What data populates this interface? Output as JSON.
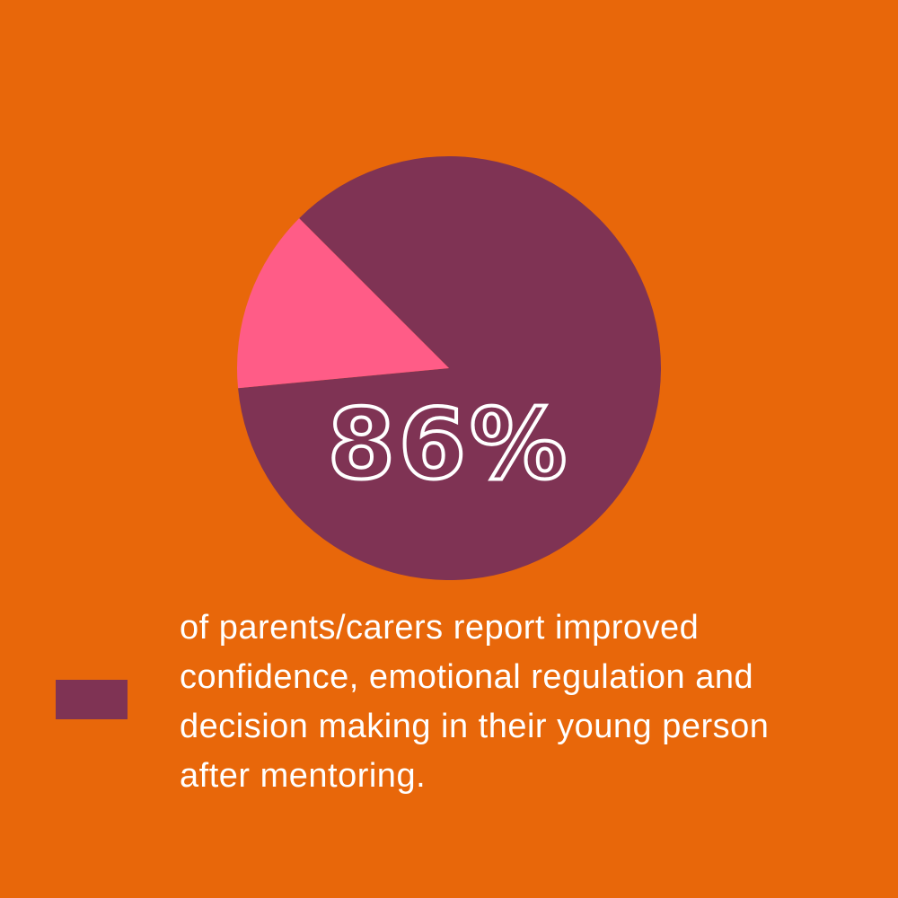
{
  "chart_data": {
    "type": "pie",
    "categories": [
      "of parents/carers report improved confidence, emotional regulation and decision making in their young person after mentoring.",
      null
    ],
    "values": [
      86,
      14
    ],
    "value_labels": [
      "86%",
      null
    ],
    "colors": [
      "#7f3354",
      "#ff5c87"
    ],
    "background": "#e8670a"
  }
}
